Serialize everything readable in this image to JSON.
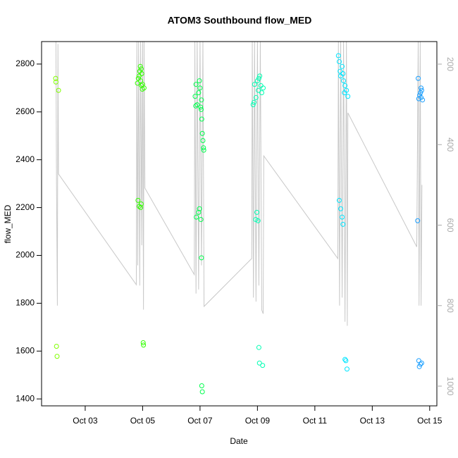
{
  "chart_data": {
    "type": "scatter",
    "title": "ATOM3 Southbound flow_MED",
    "x_label": "Date",
    "y_label": "flow_MED",
    "xlim": [
      1.48,
      15.25
    ],
    "ylim": [
      1371,
      2894
    ],
    "y2lim": [
      1049,
      144
    ],
    "xticks": [
      {
        "value": 3,
        "label": "Oct 03"
      },
      {
        "value": 5,
        "label": "Oct 05"
      },
      {
        "value": 7,
        "label": "Oct 07"
      },
      {
        "value": 9,
        "label": "Oct 09"
      },
      {
        "value": 11,
        "label": "Oct 11"
      },
      {
        "value": 13,
        "label": "Oct 13"
      },
      {
        "value": 15,
        "label": "Oct 15"
      }
    ],
    "yticks": [
      1400,
      1600,
      1800,
      2000,
      2200,
      2400,
      2600,
      2800
    ],
    "y2ticks": [
      200,
      400,
      600,
      800,
      1000
    ],
    "series": [
      {
        "color": "#80ff00",
        "x": [
          1.97,
          1.98,
          2.07,
          2.0,
          2.02
        ],
        "values": [
          2740,
          2725,
          2690,
          1620,
          1578
        ]
      },
      {
        "color": "#33ff00",
        "x": [
          4.92,
          4.95,
          4.9,
          4.97,
          4.88,
          4.85,
          4.93,
          4.82,
          5.0,
          4.96,
          5.05,
          4.99,
          4.84,
          4.95,
          4.88,
          4.93,
          5.02,
          5.03
        ],
        "values": [
          2790,
          2780,
          2770,
          2760,
          2750,
          2740,
          2730,
          2720,
          2715,
          2710,
          2700,
          2695,
          2230,
          2215,
          2205,
          2200,
          1635,
          1625
        ]
      },
      {
        "color": "#00ff4d",
        "x": [
          6.98,
          6.86,
          7.0,
          6.95,
          6.83,
          7.05,
          6.9,
          6.85,
          7.02,
          7.04,
          7.06,
          7.08,
          7.1,
          7.12,
          7.13,
          6.98,
          6.95,
          6.87,
          7.03,
          7.05,
          7.06,
          7.08
        ],
        "values": [
          2730,
          2715,
          2700,
          2680,
          2665,
          2650,
          2630,
          2625,
          2620,
          2610,
          2570,
          2510,
          2480,
          2450,
          2440,
          2195,
          2180,
          2160,
          2150,
          1990,
          1455,
          1430
        ]
      },
      {
        "color": "#00ffb3",
        "x": [
          9.08,
          9.05,
          9.0,
          8.9,
          9.12,
          9.2,
          9.03,
          9.15,
          8.95,
          8.88,
          8.85,
          8.98,
          8.94,
          9.02,
          9.05,
          9.07,
          9.18
        ],
        "values": [
          2750,
          2740,
          2730,
          2715,
          2710,
          2700,
          2690,
          2680,
          2660,
          2640,
          2630,
          2180,
          2150,
          2145,
          1615,
          1550,
          1540
        ]
      },
      {
        "color": "#00e5ff",
        "x": [
          11.82,
          11.85,
          11.95,
          11.88,
          11.98,
          11.9,
          12.0,
          12.05,
          12.1,
          12.03,
          12.15,
          11.85,
          11.9,
          11.95,
          11.98,
          12.05,
          12.08,
          12.12
        ],
        "values": [
          2835,
          2810,
          2790,
          2770,
          2760,
          2750,
          2730,
          2710,
          2690,
          2680,
          2665,
          2230,
          2195,
          2160,
          2130,
          1565,
          1560,
          1525
        ]
      },
      {
        "color": "#1a9fff",
        "x": [
          14.6,
          14.7,
          14.72,
          14.68,
          14.65,
          14.7,
          14.62,
          14.75,
          14.58,
          14.62,
          14.72,
          14.68,
          14.64
        ],
        "values": [
          2740,
          2700,
          2690,
          2680,
          2670,
          2660,
          2655,
          2650,
          2145,
          1560,
          1550,
          1545,
          1535
        ]
      },
      {
        "type": "line",
        "axis": "y2",
        "color": "#c8c8c8",
        "x": [
          1.98,
          2.0,
          2.03,
          2.05,
          2.07,
          4.78,
          4.8,
          4.83,
          4.86,
          4.9,
          4.93,
          4.97,
          5.0,
          5.03,
          5.05,
          5.08,
          6.8,
          6.82,
          6.86,
          6.9,
          6.95,
          7.0,
          7.05,
          7.1,
          7.14,
          8.8,
          8.82,
          8.86,
          8.9,
          8.95,
          9.0,
          9.05,
          9.1,
          9.15,
          9.2,
          9.22,
          11.8,
          11.82,
          11.86,
          11.9,
          11.95,
          12.0,
          12.05,
          12.1,
          12.13,
          12.15,
          14.55,
          14.6,
          14.63,
          14.67,
          14.7,
          14.73
        ],
        "values": [
          144,
          492,
          800,
          150,
          473,
          748,
          144,
          700,
          144,
          750,
          144,
          650,
          144,
          810,
          144,
          508,
          723,
          144,
          770,
          144,
          760,
          144,
          700,
          144,
          802,
          683,
          144,
          780,
          144,
          790,
          144,
          750,
          144,
          811,
          820,
          428,
          683,
          144,
          800,
          144,
          780,
          144,
          840,
          144,
          850,
          321,
          654,
          144,
          800,
          144,
          800,
          500
        ]
      }
    ]
  }
}
